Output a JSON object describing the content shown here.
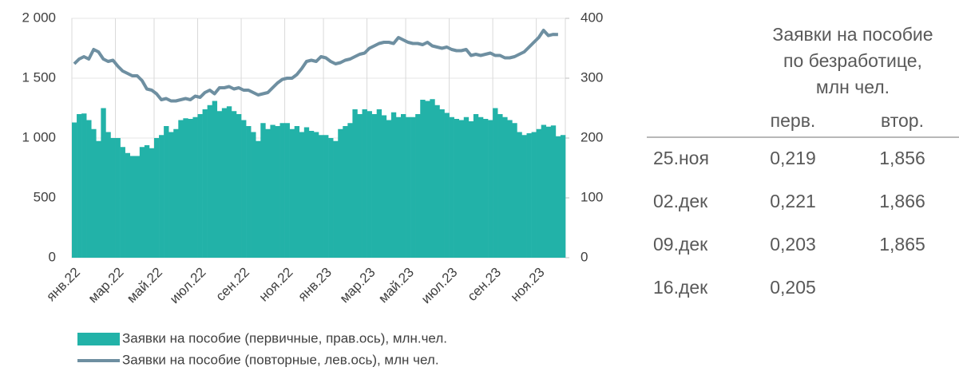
{
  "chart_data": {
    "type": "bar-line",
    "categories": [
      "янв.22",
      null,
      null,
      null,
      null,
      null,
      null,
      null,
      null,
      "мар.22",
      null,
      null,
      null,
      null,
      null,
      null,
      null,
      "май.22",
      null,
      null,
      null,
      null,
      null,
      null,
      null,
      null,
      "июл.22",
      null,
      null,
      null,
      null,
      null,
      null,
      null,
      null,
      "сен.22",
      null,
      null,
      null,
      null,
      null,
      null,
      null,
      null,
      "ноя.22",
      null,
      null,
      null,
      null,
      null,
      null,
      null,
      "янв.23",
      null,
      null,
      null,
      null,
      null,
      null,
      null,
      null,
      "мар.23",
      null,
      null,
      null,
      null,
      null,
      null,
      null,
      "май.23",
      null,
      null,
      null,
      null,
      null,
      null,
      null,
      null,
      "июл.23",
      null,
      null,
      null,
      null,
      null,
      null,
      null,
      null,
      "сен.23",
      null,
      null,
      null,
      null,
      null,
      null,
      null,
      null,
      "ноя.23",
      null,
      null,
      null,
      null,
      null
    ],
    "series": [
      {
        "name": "Заявки на пособие (первичные, прав.ось), млн.чел.",
        "type": "bar",
        "axis": "y2",
        "color": "#22b2a8",
        "values": [
          226,
          240,
          241,
          230,
          215,
          195,
          250,
          210,
          200,
          200,
          185,
          175,
          170,
          170,
          185,
          188,
          183,
          200,
          205,
          220,
          210,
          215,
          230,
          233,
          232,
          235,
          240,
          248,
          255,
          262,
          245,
          250,
          253,
          245,
          240,
          230,
          220,
          210,
          195,
          225,
          215,
          222,
          220,
          225,
          225,
          215,
          220,
          210,
          218,
          212,
          210,
          205,
          205,
          200,
          195,
          215,
          220,
          225,
          248,
          240,
          248,
          245,
          240,
          248,
          238,
          230,
          243,
          235,
          240,
          235,
          235,
          240,
          264,
          262,
          265,
          255,
          248,
          242,
          235,
          232,
          230,
          235,
          228,
          240,
          235,
          232,
          230,
          250,
          240,
          235,
          230,
          225,
          210,
          205,
          208,
          210,
          215,
          222,
          219,
          221,
          203,
          205
        ]
      },
      {
        "name": "Заявки на пособие (повторные, лев.ось), млн чел.",
        "type": "line",
        "axis": "y",
        "color": "#6e8fa1",
        "values": [
          1620,
          1660,
          1680,
          1660,
          1740,
          1720,
          1660,
          1640,
          1650,
          1600,
          1560,
          1540,
          1520,
          1520,
          1480,
          1410,
          1400,
          1370,
          1320,
          1330,
          1310,
          1310,
          1320,
          1330,
          1320,
          1350,
          1340,
          1380,
          1400,
          1370,
          1420,
          1420,
          1430,
          1410,
          1420,
          1400,
          1400,
          1380,
          1360,
          1370,
          1380,
          1420,
          1460,
          1490,
          1500,
          1500,
          1530,
          1580,
          1640,
          1650,
          1640,
          1680,
          1670,
          1640,
          1620,
          1630,
          1650,
          1660,
          1680,
          1700,
          1710,
          1750,
          1770,
          1790,
          1800,
          1800,
          1790,
          1840,
          1820,
          1800,
          1790,
          1790,
          1780,
          1800,
          1770,
          1760,
          1750,
          1760,
          1740,
          1730,
          1730,
          1740,
          1690,
          1700,
          1690,
          1700,
          1710,
          1690,
          1690,
          1670,
          1670,
          1680,
          1700,
          1720,
          1760,
          1800,
          1840,
          1900,
          1856,
          1866,
          1865,
          null
        ]
      }
    ],
    "ylim": [
      0,
      2000
    ],
    "yticks": [
      0,
      500,
      {
        "value": 1000,
        "label": "1 000"
      },
      {
        "value": 1500,
        "label": "1 500"
      },
      {
        "value": 2000,
        "label": "2 000"
      }
    ],
    "y2lim": [
      0,
      400
    ],
    "y2ticks": [
      0,
      100,
      200,
      300,
      400
    ],
    "grid": true,
    "legend": "bottom"
  },
  "table": {
    "title": [
      "Заявки на пособие",
      "по безработице,",
      "млн чел."
    ],
    "columns": [
      "перв.",
      "втор."
    ],
    "rows": [
      [
        "25.ноя",
        "0,219",
        "1,856"
      ],
      [
        "02.дек",
        "0,221",
        "1,866"
      ],
      [
        "09.дек",
        "0,203",
        "1,865"
      ],
      [
        "16.дек",
        "0,205",
        ""
      ]
    ]
  }
}
